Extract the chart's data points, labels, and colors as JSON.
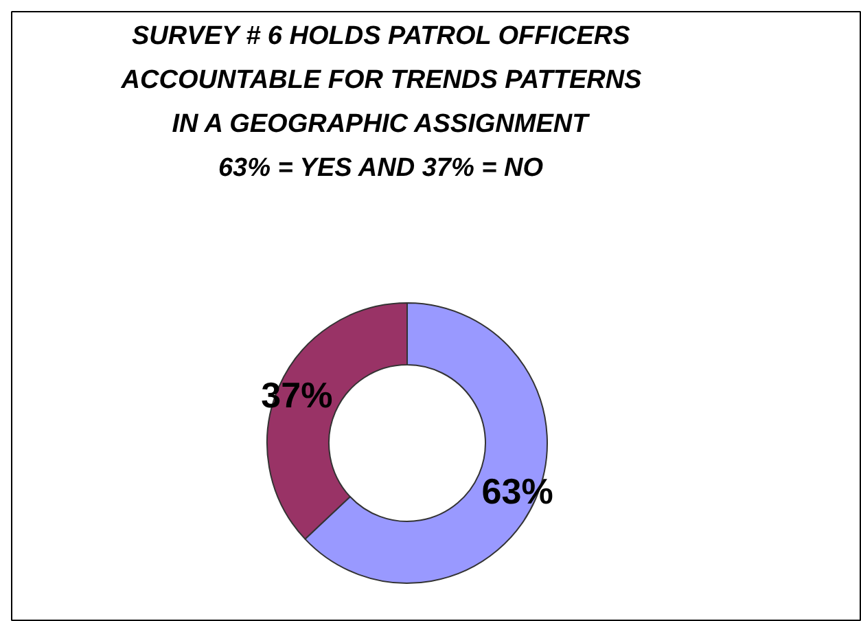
{
  "chart_data": {
    "type": "donut",
    "title": "SURVEY # 6 HOLDS PATROL OFFICERS\nACCOUNTABLE FOR TRENDS PATTERNS\nIN A GEOGRAPHIC ASSIGNMENT\n63% = YES AND 37% = NO",
    "categories": [
      null,
      null
    ],
    "values": [
      63,
      37
    ],
    "colors": [
      "#9999ff",
      "#993366"
    ],
    "value_labels": [
      "63%",
      "37%"
    ]
  }
}
